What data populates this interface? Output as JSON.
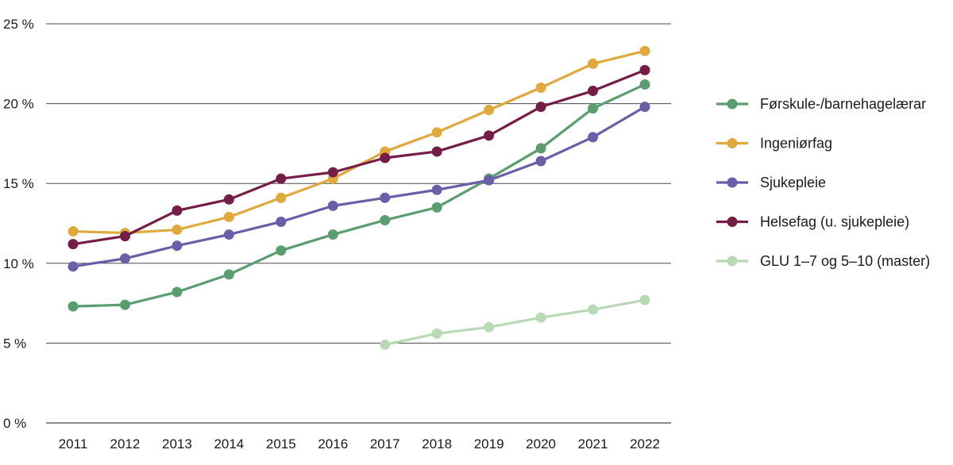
{
  "chart_data": {
    "type": "line",
    "title": "",
    "xlabel": "",
    "ylabel": "",
    "x": [
      "2011",
      "2012",
      "2013",
      "2014",
      "2015",
      "2016",
      "2017",
      "2018",
      "2019",
      "2020",
      "2021",
      "2022"
    ],
    "ylim": [
      0,
      25
    ],
    "yticks": [
      0,
      5,
      10,
      15,
      20,
      25
    ],
    "ytick_labels": [
      "0 %",
      "5 %",
      "10 %",
      "15 %",
      "20 %",
      "25 %"
    ],
    "grid": true,
    "legend_position": "right",
    "series": [
      {
        "name": "Førskule-/barnehagelærar",
        "color": "#5a9e6f",
        "values": [
          7.3,
          7.4,
          8.2,
          9.3,
          10.8,
          11.8,
          12.7,
          13.5,
          15.3,
          17.2,
          19.7,
          21.2
        ]
      },
      {
        "name": "Ingeniørfag",
        "color": "#e0a93c",
        "values": [
          12.0,
          11.9,
          12.1,
          12.9,
          14.1,
          15.3,
          17.0,
          18.2,
          19.6,
          21.0,
          22.5,
          23.3
        ]
      },
      {
        "name": "Sjukepleie",
        "color": "#6a5ea8",
        "values": [
          9.8,
          10.3,
          11.1,
          11.8,
          12.6,
          13.6,
          14.1,
          14.6,
          15.2,
          16.4,
          17.9,
          19.8
        ]
      },
      {
        "name": "Helsefag (u. sjukepleie)",
        "color": "#751c47",
        "values": [
          11.2,
          11.7,
          13.3,
          14.0,
          15.3,
          15.7,
          16.6,
          17.0,
          18.0,
          19.8,
          20.8,
          22.1
        ]
      },
      {
        "name": "GLU 1–7 og 5–10 (master)",
        "color": "#b7d9b4",
        "values": [
          null,
          null,
          null,
          null,
          null,
          null,
          4.9,
          5.6,
          6.0,
          6.6,
          7.1,
          7.7
        ]
      }
    ]
  }
}
